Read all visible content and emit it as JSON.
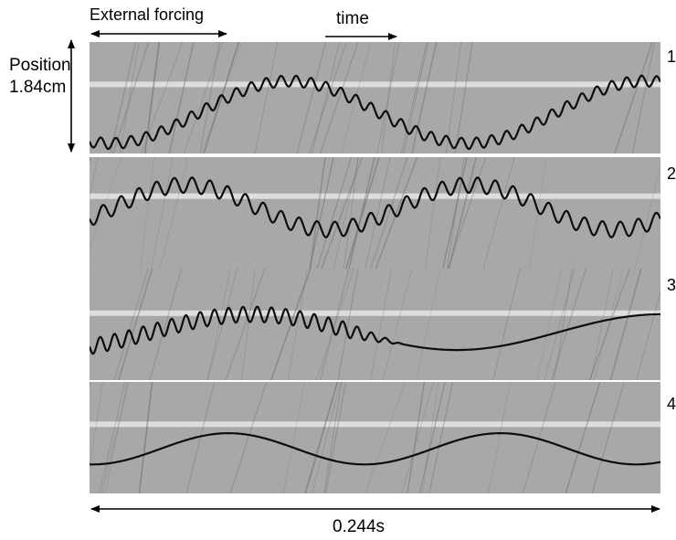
{
  "labels": {
    "external_forcing": "External forcing",
    "time": "time",
    "position_word": "Position",
    "position_value": "1.84cm",
    "duration": "0.244s"
  },
  "panels": [
    {
      "number": "1",
      "baseline": 0.63,
      "waves": [
        {
          "amp": 0.28,
          "freq": 1.6,
          "phase": 1.2
        }
      ],
      "ripple_amp": 0.05,
      "ripple_freq": 38,
      "ripple_fade": 0.0
    },
    {
      "number": "2",
      "baseline": 0.45,
      "waves": [
        {
          "amp": 0.2,
          "freq": 2.0,
          "phase": 2.6
        }
      ],
      "ripple_amp": 0.07,
      "ripple_freq": 32,
      "ripple_fade": 0.0
    },
    {
      "number": "3",
      "baseline": 0.57,
      "waves": [
        {
          "amp": 0.16,
          "freq": 1.4,
          "phase": 2.2
        }
      ],
      "ripple_amp": 0.07,
      "ripple_freq": 40,
      "ripple_fade": 0.45
    },
    {
      "number": "4",
      "baseline": 0.6,
      "waves": [
        {
          "amp": 0.14,
          "freq": 2.1,
          "phase": 1.5
        }
      ],
      "ripple_amp": 0.0,
      "ripple_freq": 30,
      "ripple_fade": 0.0
    }
  ],
  "colors": {
    "panel_background": "#a8a8a8",
    "bright_band": "#efefef",
    "trace": "#0d0d0d",
    "streak": "#6e6e6e"
  }
}
